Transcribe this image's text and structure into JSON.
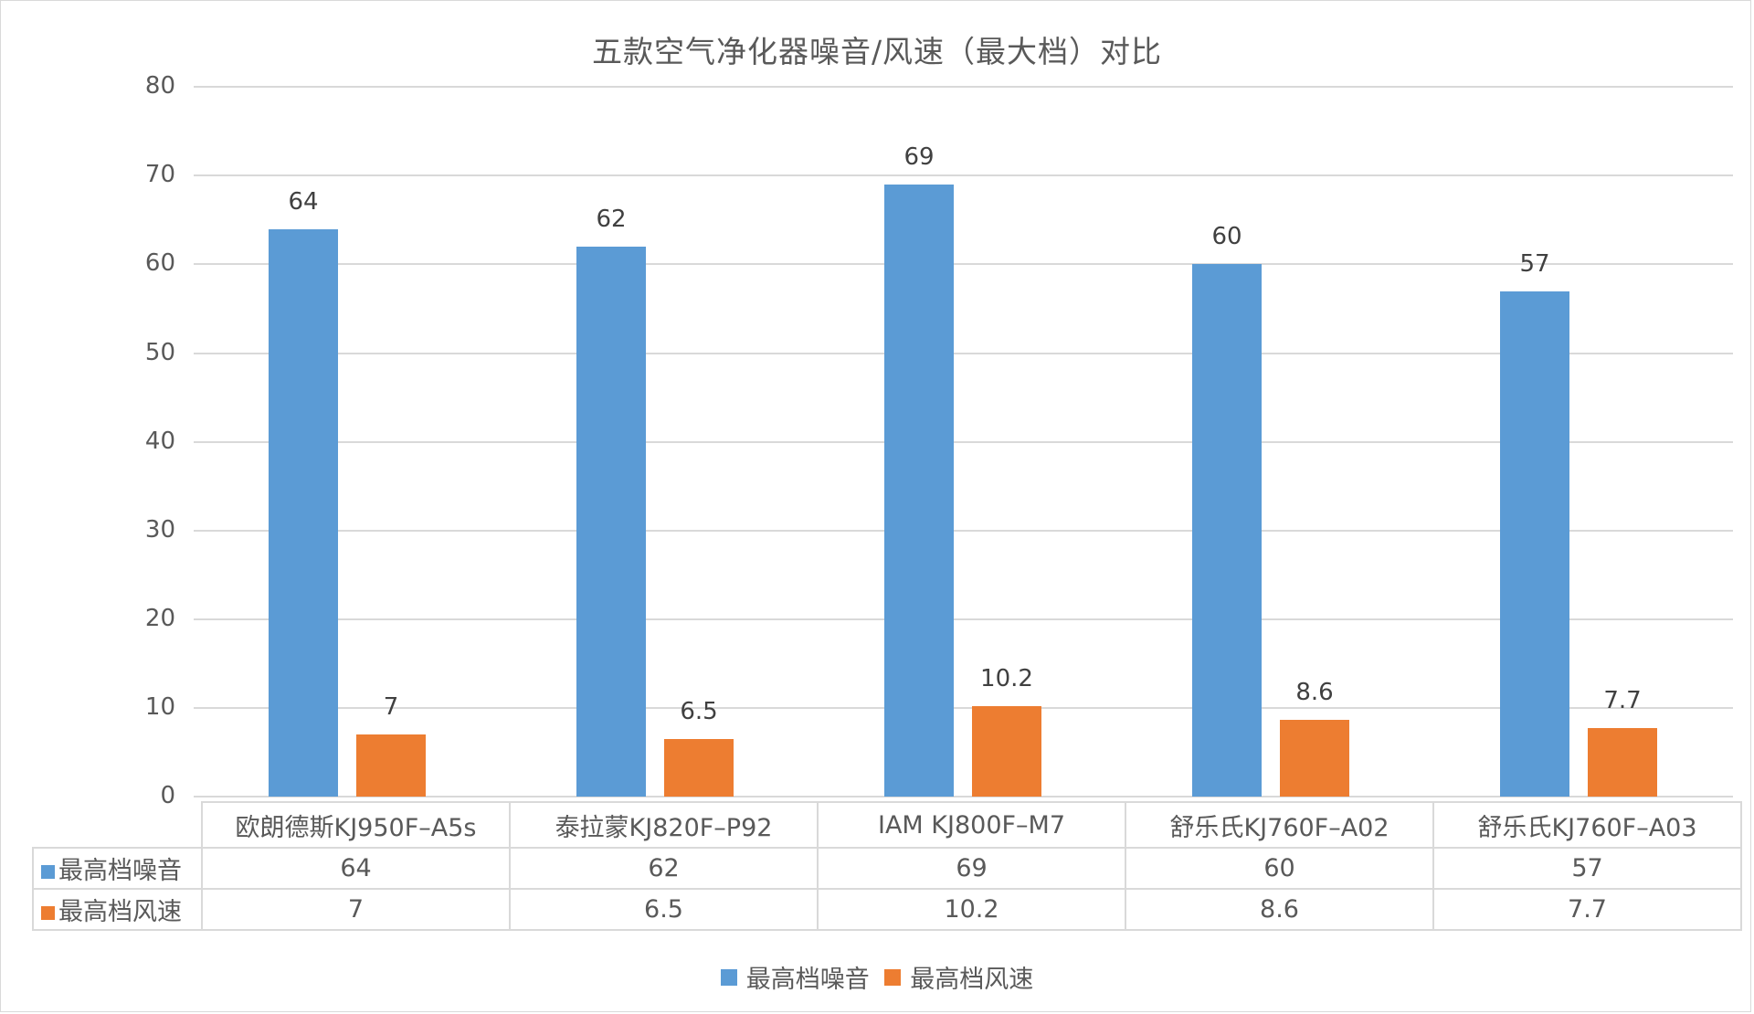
{
  "chart_data": {
    "type": "bar",
    "title": "五款空气净化器噪音/风速（最大档）对比",
    "xlabel": "",
    "ylabel": "",
    "ylim": [
      0,
      80
    ],
    "yticks": [
      0,
      10,
      20,
      30,
      40,
      50,
      60,
      70,
      80
    ],
    "grid": true,
    "legend_position": "bottom",
    "data_table": true,
    "categories": [
      "欧朗德斯KJ950F-A5s",
      "泰拉蒙KJ820F-P92",
      "IAM KJ800F-M7",
      "舒乐氏KJ760F-A02",
      "舒乐氏KJ760F-A03"
    ],
    "series": [
      {
        "name": "最高档噪音",
        "color": "#5B9BD5",
        "values": [
          64,
          62,
          69,
          60,
          57
        ]
      },
      {
        "name": "最高档风速",
        "color": "#ED7D31",
        "values": [
          7,
          6.5,
          10.2,
          8.6,
          7.7
        ]
      }
    ]
  },
  "labels": {
    "title": "五款空气净化器噪音/风速（最大档）对比",
    "yticks": [
      "0",
      "10",
      "20",
      "30",
      "40",
      "50",
      "60",
      "70",
      "80"
    ],
    "categories": [
      "欧朗德斯KJ950F–A5s",
      "泰拉蒙KJ820F–P92",
      "IAM KJ800F–M7",
      "舒乐氏KJ760F–A02",
      "舒乐氏KJ760F–A03"
    ],
    "series": [
      {
        "name": "最高档噪音",
        "values": [
          "64",
          "62",
          "69",
          "60",
          "57"
        ]
      },
      {
        "name": "最高档风速",
        "values": [
          "7",
          "6.5",
          "10.2",
          "8.6",
          "7.7"
        ]
      }
    ]
  }
}
